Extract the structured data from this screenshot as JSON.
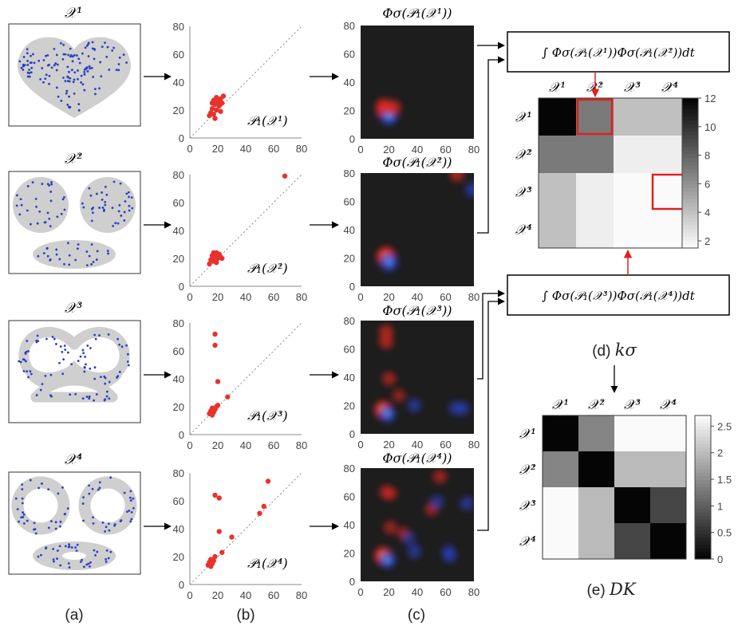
{
  "row_labels": [
    "𝒳¹",
    "𝒳²",
    "𝒳³",
    "𝒳⁴"
  ],
  "pd_labels": [
    "𝒫₁(𝒳¹)",
    "𝒫₁(𝒳²)",
    "𝒫₁(𝒳³)",
    "𝒫₁(𝒳⁴)"
  ],
  "pi_titles": [
    "Φσ(𝒫₁(𝒳¹))",
    "Φσ(𝒫₁(𝒳²))",
    "Φσ(𝒫₁(𝒳³))",
    "Φσ(𝒫₁(𝒳⁴))"
  ],
  "axis_ticks": [
    "0",
    "20",
    "40",
    "60",
    "80"
  ],
  "integral_top": "∫ Φσ(𝒫₁(𝒳¹))Φσ(𝒫₁(𝒳²))dt",
  "integral_bottom": "∫ Φσ(𝒫₁(𝒳³))Φσ(𝒫₁(𝒳⁴))dt",
  "panel_labels": {
    "a": "(a)",
    "b": "(b)",
    "c": "(c)"
  },
  "kernel_caption": {
    "prefix": "(d) ",
    "symbol": "kσ"
  },
  "dist_caption": {
    "prefix": "(e) ",
    "symbol": "DK"
  },
  "colors": {
    "point": "#e8322c",
    "sample": "#2a3fc0",
    "shape": "#cfcfcf",
    "highlight": "#e02020"
  },
  "persistence_diagrams": [
    {
      "name": "P1(X1)",
      "points": [
        [
          14,
          16
        ],
        [
          15,
          18
        ],
        [
          16,
          21
        ],
        [
          17,
          17
        ],
        [
          18,
          24
        ],
        [
          19,
          20
        ],
        [
          20,
          26
        ],
        [
          21,
          23
        ],
        [
          22,
          19
        ],
        [
          22,
          28
        ],
        [
          23,
          25
        ],
        [
          24,
          30
        ],
        [
          17,
          27
        ],
        [
          19,
          29
        ],
        [
          16,
          25
        ],
        [
          18,
          14
        ]
      ]
    },
    {
      "name": "P1(X2)",
      "points": [
        [
          14,
          16
        ],
        [
          15,
          19
        ],
        [
          16,
          22
        ],
        [
          17,
          18
        ],
        [
          18,
          21
        ],
        [
          19,
          24
        ],
        [
          20,
          20
        ],
        [
          21,
          23
        ],
        [
          22,
          21
        ],
        [
          23,
          20
        ],
        [
          17,
          24
        ],
        [
          19,
          17
        ],
        [
          68,
          79
        ]
      ]
    },
    {
      "name": "P1(X3)",
      "points": [
        [
          14,
          15
        ],
        [
          15,
          17
        ],
        [
          16,
          19
        ],
        [
          17,
          16
        ],
        [
          18,
          18
        ],
        [
          19,
          20
        ],
        [
          20,
          21
        ],
        [
          18,
          72
        ],
        [
          18,
          64
        ],
        [
          20,
          38
        ],
        [
          27,
          27
        ],
        [
          16,
          14
        ]
      ]
    },
    {
      "name": "P1(X4)",
      "points": [
        [
          13,
          14
        ],
        [
          14,
          16
        ],
        [
          15,
          18
        ],
        [
          16,
          15
        ],
        [
          17,
          17
        ],
        [
          18,
          20
        ],
        [
          15,
          13
        ],
        [
          18,
          64
        ],
        [
          21,
          62
        ],
        [
          21,
          38
        ],
        [
          23,
          23
        ],
        [
          30,
          34
        ],
        [
          50,
          51
        ],
        [
          53,
          56
        ],
        [
          56,
          74
        ]
      ]
    }
  ],
  "persistence_images": [
    {
      "blobs": [
        [
          18,
          20,
          "red",
          1.0
        ],
        [
          20,
          16,
          "blue",
          0.8
        ],
        [
          16,
          23,
          "red",
          0.6
        ],
        [
          23,
          22,
          "red",
          0.6
        ]
      ]
    },
    {
      "blobs": [
        [
          18,
          21,
          "red",
          1.0
        ],
        [
          20,
          17,
          "blue",
          0.8
        ],
        [
          68,
          79,
          "red",
          0.5
        ],
        [
          79,
          68,
          "blue",
          0.5
        ]
      ]
    },
    {
      "blobs": [
        [
          16,
          17,
          "red",
          0.9
        ],
        [
          19,
          14,
          "blue",
          0.7
        ],
        [
          18,
          72,
          "red",
          0.5
        ],
        [
          18,
          65,
          "red",
          0.5
        ],
        [
          20,
          39,
          "red",
          0.45
        ],
        [
          38,
          20,
          "blue",
          0.4
        ],
        [
          27,
          27,
          "red",
          0.35
        ],
        [
          67,
          18,
          "blue",
          0.4
        ],
        [
          72,
          18,
          "blue",
          0.4
        ]
      ]
    },
    {
      "blobs": [
        [
          16,
          18,
          "red",
          0.9
        ],
        [
          19,
          15,
          "blue",
          0.7
        ],
        [
          18,
          63,
          "red",
          0.45
        ],
        [
          21,
          62,
          "red",
          0.4
        ],
        [
          21,
          38,
          "red",
          0.4
        ],
        [
          38,
          21,
          "blue",
          0.4
        ],
        [
          30,
          34,
          "red",
          0.35
        ],
        [
          50,
          51,
          "red",
          0.4
        ],
        [
          54,
          56,
          "blue",
          0.4
        ],
        [
          56,
          74,
          "red",
          0.45
        ],
        [
          75,
          55,
          "blue",
          0.4
        ],
        [
          63,
          18,
          "blue",
          0.4
        ],
        [
          62,
          21,
          "blue",
          0.35
        ],
        [
          34,
          30,
          "blue",
          0.35
        ]
      ]
    }
  ],
  "matrix_d": {
    "values": [
      [
        12,
        7,
        4,
        4
      ],
      [
        7,
        7,
        2,
        2
      ],
      [
        4,
        2,
        1.5,
        1.5
      ],
      [
        4,
        2,
        1.5,
        1.5
      ]
    ],
    "colorbar_ticks": [
      "12",
      "10",
      "8",
      "6",
      "4",
      "2"
    ],
    "colorbar_range": [
      1.5,
      12
    ],
    "highlight_cells": [
      [
        0,
        1
      ],
      [
        2,
        3
      ]
    ]
  },
  "matrix_e": {
    "values": [
      [
        0,
        1.4,
        2.7,
        2.7
      ],
      [
        1.4,
        0,
        2.0,
        2.0
      ],
      [
        2.7,
        2.0,
        0,
        0.7
      ],
      [
        2.7,
        2.0,
        0.7,
        0
      ]
    ],
    "colorbar_ticks": [
      "2.5",
      "2",
      "1.5",
      "1",
      "0.5",
      "0"
    ],
    "colorbar_range": [
      0,
      2.7
    ]
  }
}
